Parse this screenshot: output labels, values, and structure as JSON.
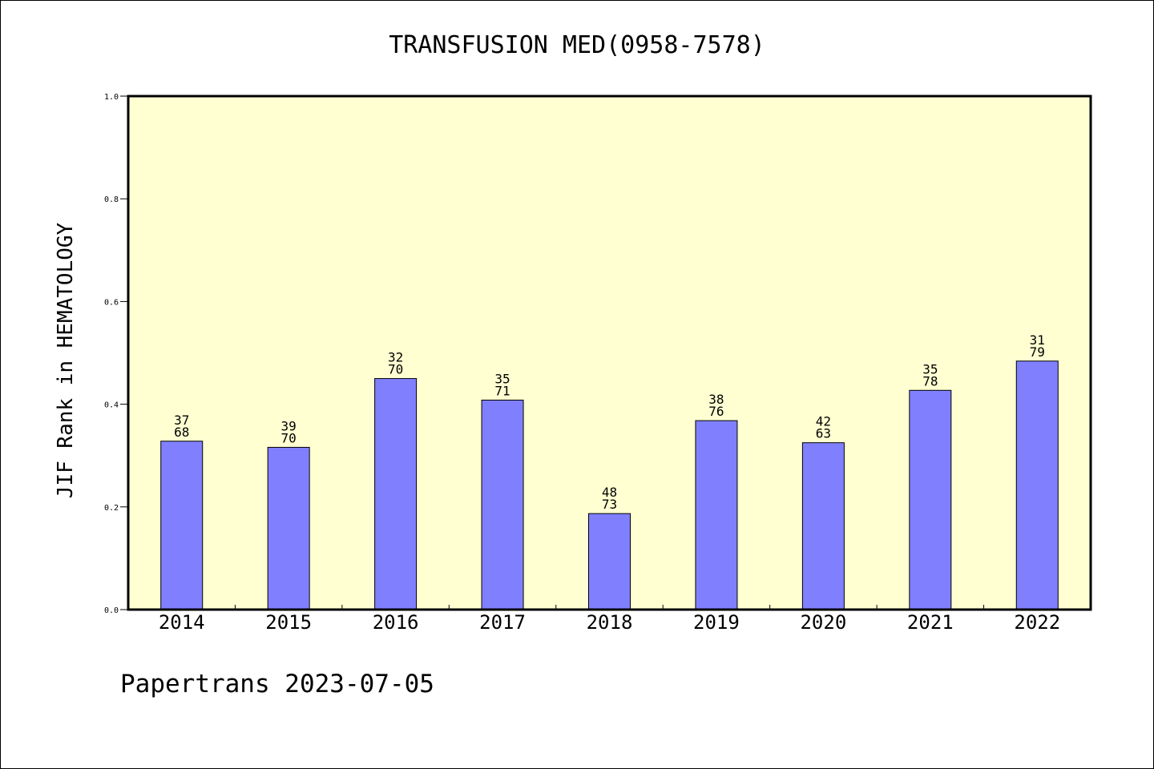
{
  "chart_data": {
    "type": "bar",
    "title": "TRANSFUSION MED(0958-7578)",
    "xlabel": "",
    "ylabel": "JIF Rank in HEMATOLOGY",
    "ylim": [
      0,
      1.0
    ],
    "yticks": [
      "0.0",
      "0.2",
      "0.4",
      "0.6",
      "0.8",
      "1.0"
    ],
    "grid": false,
    "categories": [
      "2014",
      "2015",
      "2016",
      "2017",
      "2018",
      "2019",
      "2020",
      "2021",
      "2022"
    ],
    "values": [
      0.328,
      0.316,
      0.45,
      0.408,
      0.187,
      0.368,
      0.325,
      0.427,
      0.484
    ],
    "rank": [
      "37",
      "39",
      "32",
      "35",
      "48",
      "38",
      "42",
      "35",
      "31"
    ],
    "total": [
      "68",
      "70",
      "70",
      "71",
      "73",
      "76",
      "63",
      "78",
      "79"
    ],
    "colors": {
      "bar": "#8080ff",
      "plot_background": "#ffffd2",
      "axis": "#000000"
    }
  },
  "footer": "Papertrans 2023-07-05"
}
